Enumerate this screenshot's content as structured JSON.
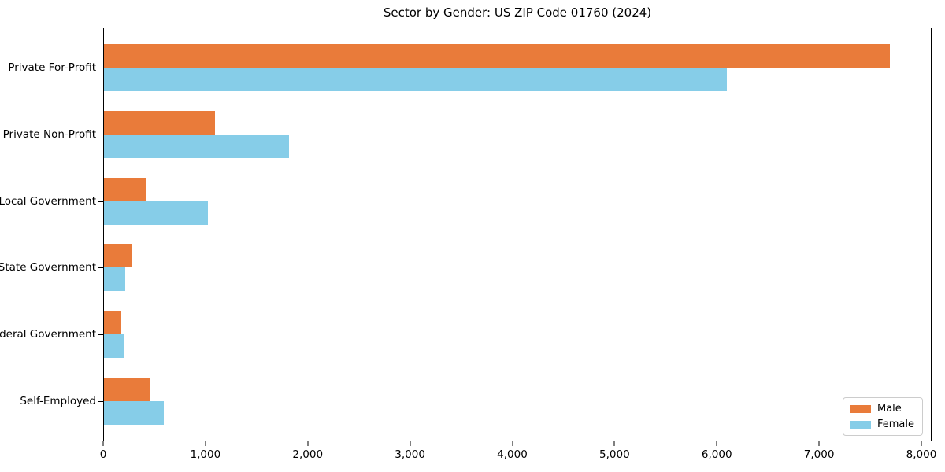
{
  "chart_data": {
    "type": "bar",
    "orientation": "horizontal",
    "title": "Sector by Gender: US ZIP Code 01760 (2024)",
    "xlabel": "",
    "ylabel": "",
    "categories": [
      "Private For-Profit",
      "Private Non-Profit",
      "Local Government",
      "State Government",
      "Federal Government",
      "Self-Employed"
    ],
    "series": [
      {
        "name": "Male",
        "color": "#E97B3A",
        "values": [
          7700,
          1090,
          420,
          270,
          170,
          450
        ]
      },
      {
        "name": "Female",
        "color": "#86CDE8",
        "values": [
          6100,
          1810,
          1020,
          210,
          200,
          590
        ]
      }
    ],
    "xlim": [
      0,
      8100
    ],
    "xticks": [
      0,
      1000,
      2000,
      3000,
      4000,
      5000,
      6000,
      7000,
      8000
    ],
    "xtick_labels": [
      "0",
      "1,000",
      "2,000",
      "3,000",
      "4,000",
      "5,000",
      "6,000",
      "7,000",
      "8,000"
    ],
    "grid": false,
    "legend": {
      "position": "lower-right",
      "entries": [
        "Male",
        "Female"
      ]
    }
  },
  "colors": {
    "male": "#E97B3A",
    "female": "#86CDE8",
    "axis": "#000000",
    "legend_border": "#cccccc",
    "background": "#ffffff"
  }
}
